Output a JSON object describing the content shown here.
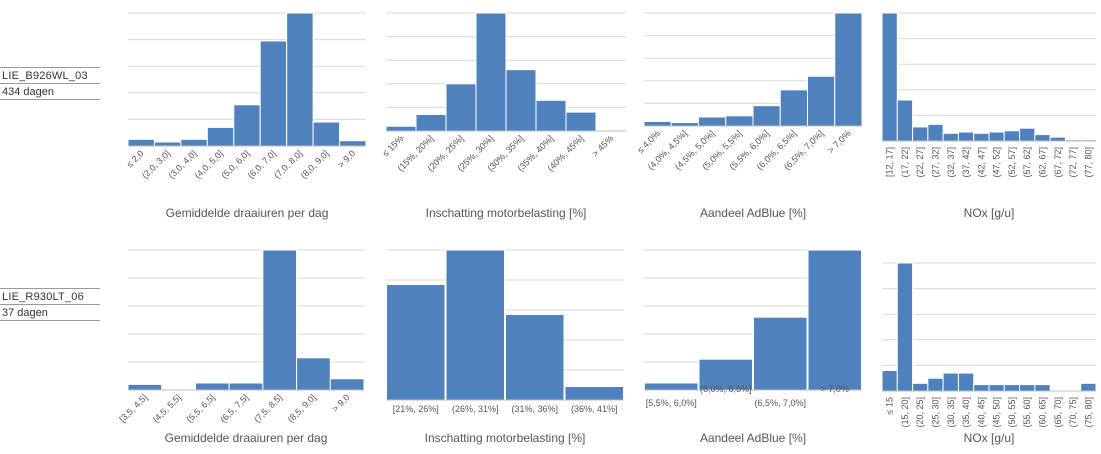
{
  "rows": [
    {
      "vehicle": "LIE_B926WL_03",
      "days": "434 dagen"
    },
    {
      "vehicle": "LIE_R930LT_06",
      "days": "37 dagen"
    }
  ],
  "colors": {
    "bar": "#4F81BD",
    "grid": "#D9D9D9",
    "axis": "#BFBFBF"
  },
  "chart_data": [
    {
      "type": "bar",
      "xlabel": "Gemiddelde draaiuren per dag",
      "categories": [
        "≤ 2,0",
        "(2,0, 3,0]",
        "(3,0, 4,0]",
        "(4,0, 5,0]",
        "(5,0, 6,0]",
        "(6,0, 7,0]",
        "(7,0, 8,0]",
        "(8,0, 9,0]",
        "> 9,0"
      ],
      "values": [
        5,
        3,
        5,
        14,
        31,
        79,
        100,
        18,
        4
      ],
      "ylim": [
        0,
        100
      ]
    },
    {
      "type": "bar",
      "xlabel": "Inschatting motorbelasting [%]",
      "categories": [
        "≤ 15%",
        "(15%, 20%]",
        "(20%, 25%]",
        "(25%, 30%]",
        "(30%, 35%]",
        "(35%, 40%]",
        "(40%, 45%]",
        "> 45%"
      ],
      "values": [
        4,
        14,
        40,
        100,
        52,
        26,
        16,
        0
      ],
      "ylim": [
        0,
        100
      ]
    },
    {
      "type": "bar",
      "xlabel": "Aandeel AdBlue [%]",
      "categories": [
        "≤ 4,0%",
        "(4,0%, 4,5%]",
        "(4,5%, 5,0%]",
        "(5,0%, 5,5%]",
        "(5,5%, 6,0%]",
        "(6,0%, 6,5%]",
        "(6,5%, 7,0%]",
        "> 7,0%"
      ],
      "values": [
        4,
        3,
        8,
        9,
        18,
        32,
        44,
        100
      ],
      "ylim": [
        0,
        100
      ]
    },
    {
      "type": "bar",
      "xlabel": "NOx [g/u]",
      "categories": [
        "[12, 17]",
        "(17, 22]",
        "(22, 27]",
        "(27, 32]",
        "(32, 37]",
        "(37, 42]",
        "(42, 47]",
        "(47, 52]",
        "(52, 57]",
        "(57, 62]",
        "(62, 67]",
        "(67, 72]",
        "(72, 77]",
        "(77, 80]"
      ],
      "values": [
        100,
        32,
        11,
        13,
        6,
        7,
        6,
        7,
        8,
        10,
        5,
        3,
        1,
        1
      ],
      "ylim": [
        0,
        100
      ]
    },
    {
      "type": "bar",
      "xlabel": "Gemiddelde draaiuren per dag",
      "categories": [
        "[3,5, 4,5]",
        "(4,5, 5,5]",
        "(5,5, 6,5]",
        "(6,5, 7,5]",
        "(7,5, 8,5]",
        "(8,5, 9,0]",
        "> 9,0"
      ],
      "values": [
        4,
        0,
        5,
        5,
        100,
        23,
        8
      ],
      "ylim": [
        0,
        100
      ]
    },
    {
      "type": "bar",
      "xlabel": "Inschatting motorbelasting [%]",
      "categories": [
        "[21%, 26%]",
        "(26%, 31%]",
        "(31%, 36%]",
        "(36%, 41%]"
      ],
      "values": [
        77,
        100,
        57,
        9
      ],
      "ylim": [
        0,
        100
      ]
    },
    {
      "type": "bar",
      "xlabel": "Aandeel AdBlue [%]",
      "categories": [
        "[5,5%, 6,0%]",
        "(6,0%, 6,5%]",
        "(6,5%, 7,0%]",
        "> 7,0%"
      ],
      "values": [
        5,
        22,
        52,
        100
      ],
      "ylim": [
        0,
        100
      ]
    },
    {
      "type": "bar",
      "xlabel": "NOx [g/u]",
      "categories": [
        "≤ 15",
        "(15, 20]",
        "(20, 25]",
        "(25, 30]",
        "(30, 35]",
        "(35, 40]",
        "(40, 45]",
        "(45, 50]",
        "(50, 55]",
        "(55, 60]",
        "(60, 65]",
        "(65, 70]",
        "(70, 75]",
        "(75, 80]"
      ],
      "values": [
        16,
        100,
        6,
        10,
        14,
        14,
        5,
        5,
        5,
        5,
        5,
        0,
        0,
        6
      ],
      "ylim": [
        0,
        100
      ]
    }
  ]
}
